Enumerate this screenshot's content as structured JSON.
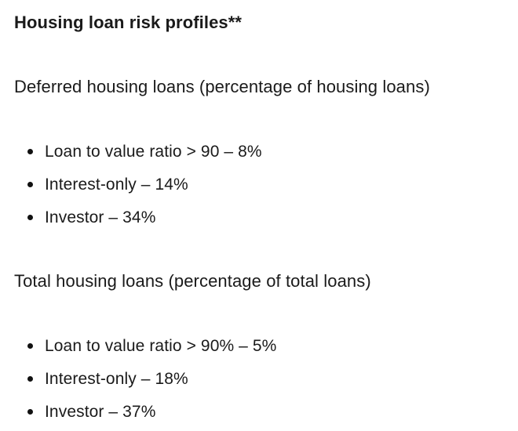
{
  "page": {
    "background_color": "#ffffff",
    "text_color": "#1a1a1a"
  },
  "content": {
    "title": "Housing loan risk profiles**",
    "sections": [
      {
        "heading": "Deferred housing loans (percentage of housing loans)",
        "items": [
          "Loan to value ratio > 90 – 8%",
          "Interest-only – 14%",
          "Investor – 34%"
        ]
      },
      {
        "heading": "Total housing loans (percentage of total loans)",
        "items": [
          "Loan to value ratio > 90% – 5%",
          "Interest-only – 18%",
          "Investor – 37%"
        ]
      }
    ]
  }
}
